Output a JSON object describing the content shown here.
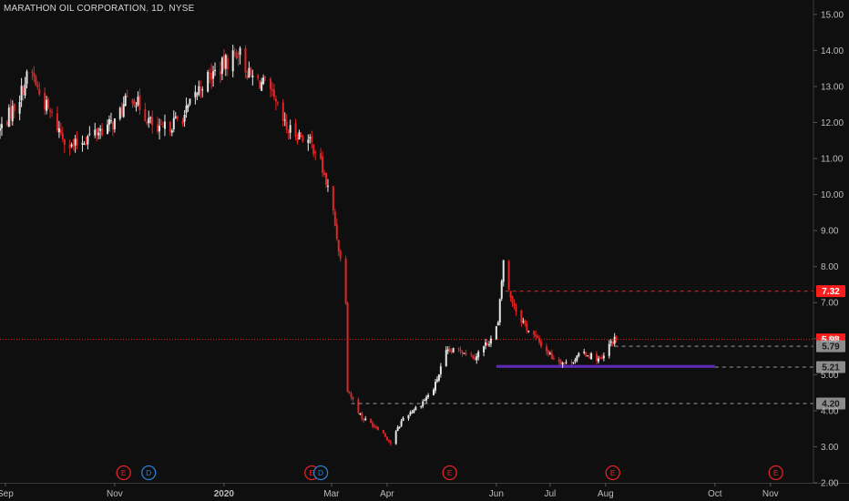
{
  "header": {
    "symbol_name": "MARATHON OIL CORPORATION",
    "interval": "1D",
    "exchange": "NYSE"
  },
  "colors": {
    "background": "#0f0f0f",
    "up": "#e6e6e6",
    "down": "#e02424",
    "current_price_line": "#e02424",
    "price_line_label": "#ff1c1c",
    "level_label": "#8c8c8c",
    "zone": "#6b2fd1",
    "event_earnings": "#e02424",
    "event_dividend": "#2a7fd4"
  },
  "chart_data": {
    "type": "candlestick",
    "y_axis": {
      "ticks": [
        "15.00",
        "14.00",
        "13.00",
        "12.00",
        "11.00",
        "10.00",
        "9.00",
        "8.00",
        "7.00",
        "6.00",
        "5.00",
        "4.00",
        "3.00",
        "2.00"
      ],
      "tick_values": [
        15,
        14,
        13,
        12,
        11,
        10,
        9,
        8,
        7,
        6,
        5,
        4,
        3,
        2
      ],
      "ylim": [
        2,
        15.4
      ]
    },
    "x_axis": {
      "labels": [
        "Sep",
        "Nov",
        "2020",
        "Mar",
        "Apr",
        "Jun",
        "Jul",
        "Aug",
        "Oct",
        "Nov"
      ],
      "label_dates": [
        "2019-09-01",
        "2019-11-01",
        "2020-01-01",
        "2020-03-01",
        "2020-04-01",
        "2020-06-01",
        "2020-07-01",
        "2020-08-01",
        "2020-10-01",
        "2020-11-01"
      ],
      "xlim": [
        "2019-08-29",
        "2020-11-25"
      ]
    },
    "series": {
      "close_path": [
        [
          "2019-08-29",
          11.8
        ],
        [
          "2019-09-08",
          12.6
        ],
        [
          "2019-09-15",
          13.5
        ],
        [
          "2019-09-20",
          12.8
        ],
        [
          "2019-10-01",
          11.8
        ],
        [
          "2019-10-08",
          11.3
        ],
        [
          "2019-10-20",
          11.7
        ],
        [
          "2019-11-01",
          12.0
        ],
        [
          "2019-11-10",
          12.8
        ],
        [
          "2019-11-25",
          11.7
        ],
        [
          "2019-12-10",
          12.2
        ],
        [
          "2019-12-20",
          13.1
        ],
        [
          "2020-01-01",
          13.6
        ],
        [
          "2020-01-09",
          14.0
        ],
        [
          "2020-01-15",
          13.3
        ],
        [
          "2020-01-25",
          13.0
        ],
        [
          "2020-02-05",
          11.8
        ],
        [
          "2020-02-15",
          11.6
        ],
        [
          "2020-02-22",
          11.2
        ],
        [
          "2020-03-01",
          9.8
        ],
        [
          "2020-03-06",
          8.2
        ],
        [
          "2020-03-09",
          7.1
        ],
        [
          "2020-03-10",
          4.6
        ],
        [
          "2020-03-18",
          3.8
        ],
        [
          "2020-03-28",
          3.5
        ],
        [
          "2020-04-03",
          3.1
        ],
        [
          "2020-04-10",
          3.8
        ],
        [
          "2020-04-20",
          4.2
        ],
        [
          "2020-04-27",
          4.6
        ],
        [
          "2020-05-04",
          5.6
        ],
        [
          "2020-05-12",
          5.7
        ],
        [
          "2020-05-20",
          5.5
        ],
        [
          "2020-05-29",
          6.0
        ],
        [
          "2020-06-02",
          6.4
        ],
        [
          "2020-06-05",
          8.2
        ],
        [
          "2020-06-08",
          7.3
        ],
        [
          "2020-06-12",
          6.8
        ],
        [
          "2020-06-18",
          6.3
        ],
        [
          "2020-06-25",
          5.9
        ],
        [
          "2020-07-02",
          5.5
        ],
        [
          "2020-07-10",
          5.3
        ],
        [
          "2020-07-20",
          5.6
        ],
        [
          "2020-07-30",
          5.4
        ],
        [
          "2020-08-04",
          5.9
        ],
        [
          "2020-08-07",
          5.98
        ]
      ],
      "last_date": "2020-08-07"
    },
    "price_labels": [
      {
        "name": "7.32",
        "value": 7.32,
        "style": "red",
        "start_date": "2020-06-06"
      },
      {
        "name": "5.98",
        "value": 5.98,
        "style": "red",
        "start_date": "2019-08-29"
      },
      {
        "name": "5.79",
        "value": 5.79,
        "style": "gray",
        "start_date": "2020-08-06"
      },
      {
        "name": "5.21",
        "value": 5.21,
        "style": "gray",
        "start_date": "2020-10-01"
      },
      {
        "name": "4.20",
        "value": 4.2,
        "style": "gray",
        "start_date": "2020-03-12"
      }
    ],
    "zone": {
      "start_date": "2020-06-01",
      "end_date": "2020-10-01",
      "low": 5.19,
      "high": 5.27
    },
    "events": [
      {
        "type": "E",
        "date": "2019-11-06"
      },
      {
        "type": "D",
        "date": "2019-11-20"
      },
      {
        "type": "E",
        "date": "2020-02-19"
      },
      {
        "type": "D",
        "date": "2020-02-24"
      },
      {
        "type": "E",
        "date": "2020-05-06"
      },
      {
        "type": "E",
        "date": "2020-08-05"
      },
      {
        "type": "E",
        "date": "2020-11-04"
      }
    ]
  }
}
